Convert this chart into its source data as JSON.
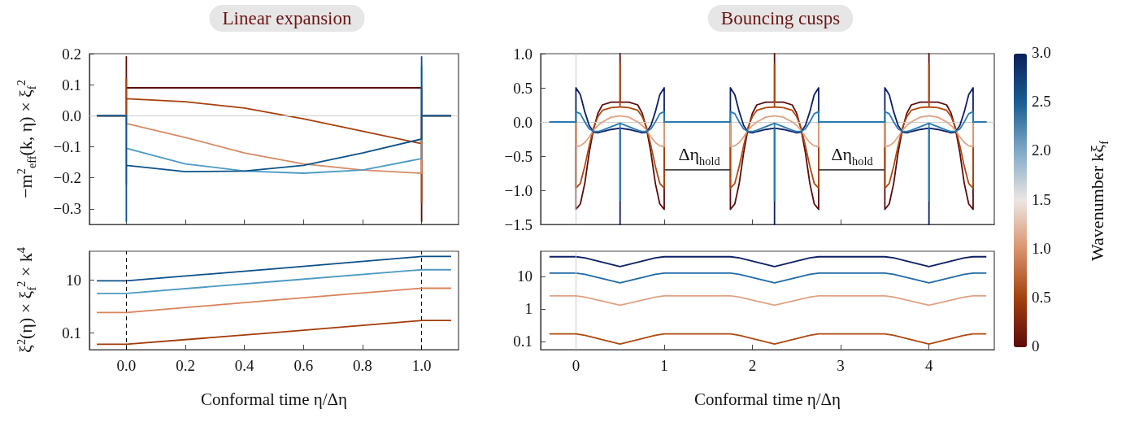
{
  "chart_data": [
    {
      "type": "line",
      "title": "Linear expansion",
      "ylabel": "−m$^{2}$$_{eff}$(k, η) × ξ$_{f}$$^{2}$",
      "xlim": [
        -0.125,
        1.125
      ],
      "xticks": [
        0,
        0.2,
        0.4,
        0.6,
        0.8,
        1
      ],
      "ylim": [
        -0.35,
        0.2
      ],
      "yticks": [
        {
          "value": -0.3,
          "label": "−0.3"
        },
        {
          "value": -0.2,
          "label": "−0.2"
        },
        {
          "value": -0.1,
          "label": "−0.1"
        },
        {
          "value": 0,
          "label": "0.0"
        },
        0.1,
        0.2
      ],
      "tick_labels": "y",
      "ref_lines": [
        {
          "axis": "y",
          "value": 0,
          "color": "#cccccc"
        }
      ],
      "series": [
        {
          "color": "#5c0b0b",
          "x": [
            -0.1,
            0,
            0,
            0,
            1,
            1,
            1,
            1.1
          ],
          "values": [
            0,
            0,
            0.19,
            0.09,
            0.09,
            -0.34,
            0,
            0
          ]
        },
        {
          "color": "#a8400f",
          "x": [
            -0.1,
            0,
            0,
            0,
            0.2,
            0.4,
            0.6,
            0.8,
            1,
            1,
            1,
            1.1
          ],
          "values": [
            0,
            0,
            0.12,
            0.055,
            0.045,
            0.025,
            -0.01,
            -0.05,
            -0.09,
            -0.28,
            0,
            0
          ]
        },
        {
          "color": "#d68a66",
          "x": [
            -0.1,
            0,
            0,
            0.2,
            0.4,
            0.6,
            0.8,
            1,
            1,
            1.1
          ],
          "values": [
            0,
            0,
            -0.025,
            -0.07,
            -0.12,
            -0.155,
            -0.175,
            -0.185,
            0,
            0
          ]
        },
        {
          "color": "#4d9ac4",
          "x": [
            -0.1,
            0,
            0,
            0,
            0.2,
            0.4,
            0.6,
            0.8,
            1,
            1,
            1,
            1.1
          ],
          "values": [
            0,
            0,
            -0.22,
            -0.105,
            -0.155,
            -0.178,
            -0.185,
            -0.175,
            -0.138,
            0.16,
            0,
            0
          ]
        },
        {
          "color": "#0b5289",
          "x": [
            -0.1,
            0,
            0,
            0,
            0.2,
            0.4,
            0.6,
            0.8,
            1,
            1,
            1,
            1.1
          ],
          "values": [
            0,
            0,
            -0.34,
            -0.16,
            -0.18,
            -0.178,
            -0.16,
            -0.12,
            -0.075,
            0.19,
            0,
            0
          ]
        }
      ]
    },
    {
      "type": "line",
      "xlabel": "Conformal time η/Δη",
      "ylabel": "ξ$^{2}$(η) × ξ$_{f}$$^{2}$ × k$^{4}$",
      "log": "y",
      "xlim": [
        -0.125,
        1.125
      ],
      "xticks": [
        {
          "value": 0,
          "label": "0.0"
        },
        0.2,
        0.4,
        0.6,
        0.8,
        {
          "value": 1,
          "label": "1.0"
        }
      ],
      "ylim": [
        0.023,
        120
      ],
      "yticks": [
        0.1,
        10
      ],
      "ref_lines": [
        {
          "axis": "x",
          "value": 0,
          "color": "#000000",
          "line_style": "dashed"
        },
        {
          "axis": "x",
          "value": 1,
          "color": "#000000",
          "line_style": "dashed"
        }
      ],
      "x": [
        -0.1,
        0,
        0.5,
        1,
        1.1
      ],
      "series": [
        {
          "color": "#0b4f8a",
          "values": [
            9.2,
            9.2,
            26,
            76,
            76
          ]
        },
        {
          "color": "#4d9ac4",
          "values": [
            3.06,
            3.06,
            8.6,
            24,
            24
          ]
        },
        {
          "color": "#d9825a",
          "values": [
            0.58,
            0.58,
            1.7,
            4.8,
            4.8
          ]
        },
        {
          "color": "#a33a0b",
          "values": [
            0.037,
            0.037,
            0.1,
            0.29,
            0.29
          ]
        }
      ]
    },
    {
      "type": "line",
      "title": "Bouncing cusps",
      "xlim": [
        -0.4,
        4.74
      ],
      "xticks": [
        0,
        1,
        2,
        3,
        4
      ],
      "ylim": [
        -1.5,
        1
      ],
      "yticks": [
        {
          "value": -1.5,
          "label": "−1.5"
        },
        {
          "value": -1,
          "label": "−1.0"
        },
        {
          "value": -0.5,
          "label": "−0.5"
        },
        {
          "value": 0,
          "label": "0.0"
        },
        0.5,
        {
          "value": 1,
          "label": "1.0"
        }
      ],
      "tick_labels": "y",
      "clabel": "Wavenumber kξ$_{f}$",
      "clim": [
        0,
        3
      ],
      "cticks": [
        0,
        0.5,
        {
          "value": 1,
          "label": "1.0"
        },
        1.5,
        {
          "value": 2,
          "label": "2.0"
        },
        2.5,
        {
          "value": 3,
          "label": "3.0"
        }
      ],
      "ref_lines": [
        {
          "axis": "y",
          "value": 0,
          "color": "#cccccc"
        },
        {
          "axis": "x",
          "value": 0,
          "color": "#cccccc"
        }
      ],
      "annotations": [
        "Δη$_{hold}$",
        "Δη$_{hold}$"
      ],
      "x": [
        -0.3,
        0,
        0,
        0.05,
        0.1,
        0.15,
        0.2,
        0.25,
        0.3,
        0.4,
        0.5,
        0.5,
        0.5,
        0.6,
        0.7,
        0.75,
        0.8,
        0.85,
        0.9,
        0.95,
        1,
        1,
        1.75,
        1.75,
        1.8,
        1.85,
        1.9,
        1.95,
        2,
        2.05,
        2.15,
        2.25,
        2.25,
        2.25,
        2.35,
        2.45,
        2.5,
        2.55,
        2.6,
        2.65,
        2.7,
        2.75,
        2.75,
        3.5,
        3.5,
        3.55,
        3.6,
        3.65,
        3.7,
        3.75,
        3.8,
        3.9,
        4,
        4,
        4,
        4.1,
        4.2,
        4.25,
        4.3,
        4.35,
        4.4,
        4.45,
        4.5,
        4.5,
        4.65
      ],
      "series": [
        {
          "color": "#5c0b0b",
          "values": [
            0,
            0,
            -1.28,
            -1.2,
            -0.9,
            -0.45,
            -0.1,
            0.13,
            0.25,
            0.29,
            0.29,
            1,
            0.29,
            0.29,
            0.25,
            0.13,
            -0.1,
            -0.45,
            -0.9,
            -1.2,
            -1.28,
            0,
            0,
            -1.28,
            -1.2,
            -0.9,
            -0.45,
            -0.1,
            0.13,
            0.25,
            0.29,
            0.29,
            1,
            0.29,
            0.29,
            0.25,
            0.13,
            -0.1,
            -0.45,
            -0.9,
            -1.2,
            -1.28,
            0,
            0,
            -1.28,
            -1.2,
            -0.9,
            -0.45,
            -0.1,
            0.13,
            0.25,
            0.29,
            0.29,
            1,
            0.29,
            0.29,
            0.25,
            0.13,
            -0.1,
            -0.45,
            -0.9,
            -1.2,
            -1.28,
            0,
            0
          ]
        },
        {
          "color": "#b0480f",
          "values": [
            0,
            0,
            -0.97,
            -0.9,
            -0.65,
            -0.35,
            -0.08,
            0.08,
            0.17,
            0.21,
            0.22,
            0.85,
            0.22,
            0.21,
            0.17,
            0.08,
            -0.08,
            -0.35,
            -0.65,
            -0.9,
            -0.97,
            0,
            0,
            -0.97,
            -0.9,
            -0.65,
            -0.35,
            -0.08,
            0.08,
            0.17,
            0.21,
            0.22,
            0.85,
            0.22,
            0.21,
            0.17,
            0.08,
            -0.08,
            -0.35,
            -0.65,
            -0.9,
            -0.97,
            0,
            0,
            -0.97,
            -0.9,
            -0.65,
            -0.35,
            -0.08,
            0.08,
            0.17,
            0.21,
            0.22,
            0.85,
            0.22,
            0.21,
            0.17,
            0.08,
            -0.08,
            -0.35,
            -0.65,
            -0.9,
            -0.97,
            0,
            0
          ]
        },
        {
          "color": "#e0a283",
          "values": [
            0,
            0,
            -0.36,
            -0.35,
            -0.3,
            -0.22,
            -0.12,
            -0.05,
            0,
            0.07,
            0.09,
            0.09,
            0.09,
            0.07,
            0,
            -0.05,
            -0.12,
            -0.22,
            -0.3,
            -0.35,
            -0.36,
            0,
            0,
            -0.36,
            -0.35,
            -0.3,
            -0.22,
            -0.12,
            -0.05,
            0,
            0.07,
            0.09,
            0.09,
            0.09,
            0.07,
            0,
            -0.05,
            -0.12,
            -0.22,
            -0.3,
            -0.35,
            -0.36,
            0,
            0,
            -0.36,
            -0.35,
            -0.3,
            -0.22,
            -0.12,
            -0.05,
            0,
            0.07,
            0.09,
            0.09,
            0.09,
            0.07,
            0,
            -0.05,
            -0.12,
            -0.22,
            -0.3,
            -0.35,
            -0.36,
            0,
            0
          ]
        },
        {
          "color": "#0d1f66",
          "values": [
            0,
            0,
            0.5,
            0.4,
            0.15,
            -0.05,
            -0.15,
            -0.16,
            -0.14,
            -0.11,
            -0.09,
            -1.5,
            -0.09,
            -0.11,
            -0.14,
            -0.16,
            -0.15,
            -0.05,
            0.15,
            0.4,
            0.5,
            0,
            0,
            0.5,
            0.4,
            0.15,
            -0.05,
            -0.15,
            -0.16,
            -0.14,
            -0.11,
            -0.09,
            -1.5,
            -0.09,
            -0.11,
            -0.14,
            -0.16,
            -0.15,
            -0.05,
            0.15,
            0.4,
            0.5,
            0,
            0,
            0.5,
            0.4,
            0.15,
            -0.05,
            -0.15,
            -0.16,
            -0.14,
            -0.11,
            -0.09,
            -1.5,
            -0.09,
            -0.11,
            -0.14,
            -0.16,
            -0.15,
            -0.05,
            0.15,
            0.4,
            0.5,
            0,
            0
          ]
        },
        {
          "color": "#2a7ab0",
          "values": [
            0,
            0,
            0.15,
            0.12,
            0,
            -0.1,
            -0.14,
            -0.14,
            -0.12,
            -0.07,
            -0.02,
            -1.15,
            -0.02,
            -0.07,
            -0.12,
            -0.14,
            -0.14,
            -0.1,
            0,
            0.12,
            0.15,
            0,
            0,
            0.15,
            0.12,
            0,
            -0.1,
            -0.14,
            -0.14,
            -0.12,
            -0.07,
            -0.02,
            -1.15,
            -0.02,
            -0.07,
            -0.12,
            -0.14,
            -0.14,
            -0.1,
            0,
            0.12,
            0.15,
            0,
            0,
            0.15,
            0.12,
            0,
            -0.1,
            -0.14,
            -0.14,
            -0.12,
            -0.07,
            -0.02,
            -1.15,
            -0.02,
            -0.07,
            -0.12,
            -0.14,
            -0.14,
            -0.1,
            0,
            0.12,
            0.15,
            0,
            0
          ]
        },
        {
          "color": "#444444",
          "x": [
            1,
            1.75
          ],
          "values": [
            -0.7,
            -0.7
          ]
        },
        {
          "color": "#444444",
          "x": [
            2.75,
            3.5
          ],
          "values": [
            -0.7,
            -0.7
          ]
        }
      ]
    },
    {
      "type": "line",
      "xlabel": "Conformal time η/Δη",
      "log": "y",
      "xlim": [
        -0.4,
        4.74
      ],
      "xticks": [
        0,
        1,
        2,
        3,
        4
      ],
      "ylim": [
        0.056,
        59
      ],
      "yticks": [
        0.1,
        1,
        10
      ],
      "ref_lines": [
        {
          "axis": "x",
          "value": 0,
          "color": "#cccccc"
        }
      ],
      "x": [
        -0.3,
        0,
        0.1,
        0.5,
        0.9,
        1,
        1.75,
        1.85,
        2.25,
        2.65,
        2.75,
        3.5,
        3.6,
        4,
        4.4,
        4.5,
        4.65
      ],
      "series": [
        {
          "color": "#0d1f66",
          "values": [
            40,
            40,
            37,
            20,
            37,
            40,
            40,
            37,
            20,
            37,
            40,
            40,
            37,
            20,
            37,
            40,
            40
          ]
        },
        {
          "color": "#1f6aa8",
          "values": [
            12.6,
            12.6,
            11.5,
            6.3,
            11.5,
            12.6,
            12.6,
            11.5,
            6.3,
            11.5,
            12.6,
            12.6,
            11.5,
            6.3,
            11.5,
            12.6,
            12.6
          ]
        },
        {
          "color": "#e0a283",
          "values": [
            2.5,
            2.5,
            2.3,
            1.3,
            2.3,
            2.5,
            2.5,
            2.3,
            1.3,
            2.3,
            2.5,
            2.5,
            2.3,
            1.3,
            2.3,
            2.5,
            2.5
          ]
        },
        {
          "color": "#b0480f",
          "values": [
            0.17,
            0.17,
            0.155,
            0.083,
            0.155,
            0.17,
            0.17,
            0.155,
            0.083,
            0.155,
            0.17,
            0.17,
            0.155,
            0.083,
            0.155,
            0.17,
            0.17
          ]
        }
      ]
    }
  ]
}
